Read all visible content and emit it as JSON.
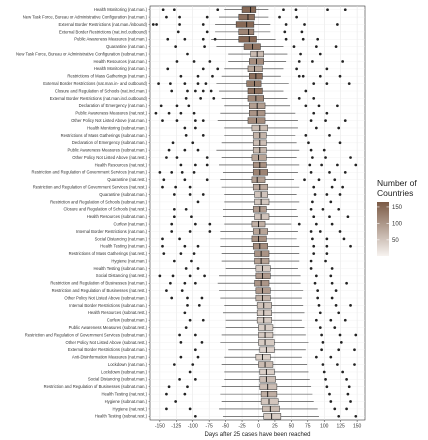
{
  "chart_data": {
    "type": "boxplot",
    "xlabel": "Days after 25 cases have been reached",
    "xlim": [
      -165,
      162
    ],
    "xticks": [
      -150,
      -125,
      -100,
      -75,
      -50,
      -25,
      0,
      25,
      50,
      75,
      100,
      125,
      150
    ],
    "grid": true,
    "legend": {
      "title_line1": "Number of",
      "title_line2": "Countries",
      "placement": "right",
      "range": [
        1,
        165
      ],
      "ticks": [
        50,
        100,
        150
      ],
      "color_low": "#f7f3f0",
      "color_high": "#7b5a45"
    },
    "series": [
      {
        "label": "Health Monitoring (nat.man.)",
        "q1": -25,
        "median": -12,
        "q3": -4,
        "wlo": -52,
        "whi": 15,
        "n": 150,
        "outliers": [
          -145,
          -128,
          -62,
          38,
          57,
          105,
          132
        ]
      },
      {
        "label": "New Task Force, Bureau or Administrative Configuration (nat.man.)",
        "q1": -30,
        "median": -16,
        "q3": -6,
        "wlo": -60,
        "whi": 15,
        "n": 142,
        "outliers": [
          -140,
          -120,
          -78,
          32,
          58
        ]
      },
      {
        "label": "External Border Restrictions (nat.man./inbound)",
        "q1": -34,
        "median": -18,
        "q3": -7,
        "wlo": -66,
        "whi": 18,
        "n": 150,
        "outliers": [
          -160,
          -155,
          -120,
          -84,
          42,
          70,
          120
        ]
      },
      {
        "label": "External Border Restrictions (nat.incl.outbound)",
        "q1": -30,
        "median": -15,
        "q3": -7,
        "wlo": -66,
        "whi": 18,
        "n": 120,
        "outliers": [
          -122,
          -78,
          40,
          66
        ]
      },
      {
        "label": "Public Awareness Measures (nat.man.)",
        "q1": -30,
        "median": -14,
        "q3": -3,
        "wlo": -72,
        "whi": 26,
        "n": 152,
        "outliers": [
          -138,
          -112,
          -84,
          -66,
          42,
          68,
          90
        ]
      },
      {
        "label": "Quarantine (nat.man.)",
        "q1": -22,
        "median": -9,
        "q3": 3,
        "wlo": -64,
        "whi": 38,
        "n": 136,
        "outliers": [
          -126,
          -82,
          54,
          88,
          118
        ]
      },
      {
        "label": "New Task Force, Bureau or Administrative Configuration (subnat.man.)",
        "q1": -12,
        "median": -2,
        "q3": 8,
        "wlo": -46,
        "whi": 44,
        "n": 62,
        "outliers": [
          -108,
          64,
          94
        ]
      },
      {
        "label": "Health Resources (nat.man.)",
        "q1": -14,
        "median": -3,
        "q3": 8,
        "wlo": -46,
        "whi": 42,
        "n": 110,
        "outliers": [
          -124,
          -98,
          -74,
          62,
          82,
          128
        ]
      },
      {
        "label": "Health Monitoring (nat.man.)",
        "q1": -16,
        "median": -6,
        "q3": 6,
        "wlo": -52,
        "whi": 38,
        "n": 84,
        "outliers": [
          -138,
          -84,
          -62,
          58,
          104
        ]
      },
      {
        "label": "Restrictions of Mass Gatherings (nat.man.)",
        "q1": -14,
        "median": -4,
        "q3": 6,
        "wlo": -56,
        "whi": 34,
        "n": 142,
        "outliers": [
          -118,
          -92,
          -70,
          62,
          68,
          94,
          124
        ]
      },
      {
        "label": "External Border Restrictions (nat.man.in- and outbound)",
        "q1": -18,
        "median": -6,
        "q3": 4,
        "wlo": -64,
        "whi": 46,
        "n": 130,
        "outliers": [
          -152,
          -134,
          -112,
          -92,
          -80,
          84,
          104,
          138
        ]
      },
      {
        "label": "Closure and Regulation of Schools (nat.incl.man.)",
        "q1": -16,
        "median": -6,
        "q3": 6,
        "wlo": -60,
        "whi": 38,
        "n": 140,
        "outliers": [
          -132,
          -108,
          -96,
          -84,
          -72,
          72
        ]
      },
      {
        "label": "External Border Restrictions (nat.man.incl.outbound)",
        "q1": -16,
        "median": -4,
        "q3": 8,
        "wlo": -56,
        "whi": 44,
        "n": 118,
        "outliers": [
          -110,
          -88,
          -68,
          62,
          84
        ]
      },
      {
        "label": "Declaration of Emergency (nat.man.)",
        "q1": -14,
        "median": -2,
        "q3": 10,
        "wlo": -52,
        "whi": 48,
        "n": 92,
        "outliers": [
          -148,
          -124,
          -106,
          72,
          92,
          120
        ]
      },
      {
        "label": "Public Awareness Measures (nat.rest.)",
        "q1": -14,
        "median": -2,
        "q3": 10,
        "wlo": -58,
        "whi": 56,
        "n": 104,
        "outliers": [
          -156,
          -136,
          -118,
          -98,
          84,
          104
        ]
      },
      {
        "label": "Other Policy Not Listed Above (nat.man.)",
        "q1": -16,
        "median": -3,
        "q3": 10,
        "wlo": -62,
        "whi": 60,
        "n": 112,
        "outliers": [
          -146,
          -124,
          -96,
          -84,
          80,
          102,
          132
        ]
      },
      {
        "label": "Health Monitoring (subnat.man.)",
        "q1": -10,
        "median": 2,
        "q3": 14,
        "wlo": -52,
        "whi": 60,
        "n": 60,
        "outliers": [
          -112,
          -96,
          88,
          122
        ]
      },
      {
        "label": "Restrictions of Mass Gatherings (subnat.man.)",
        "q1": -8,
        "median": 2,
        "q3": 12,
        "wlo": -52,
        "whi": 56,
        "n": 70,
        "outliers": [
          -110,
          -84,
          72,
          108
        ]
      },
      {
        "label": "Declaration of Emergency (subnat.man.)",
        "q1": -8,
        "median": 2,
        "q3": 12,
        "wlo": -56,
        "whi": 58,
        "n": 58,
        "outliers": [
          -130,
          -100,
          76,
          124
        ]
      },
      {
        "label": "Public Awareness Measures (subnat.man.)",
        "q1": -8,
        "median": 2,
        "q3": 12,
        "wlo": -64,
        "whi": 62,
        "n": 64,
        "outliers": [
          -136,
          -112,
          -92,
          80,
          100
        ]
      },
      {
        "label": "Other Policy Not Listed Above (nat.rest.)",
        "q1": -10,
        "median": 0,
        "q3": 12,
        "wlo": -56,
        "whi": 58,
        "n": 86,
        "outliers": [
          -140,
          -124,
          -78,
          82,
          102,
          140
        ]
      },
      {
        "label": "Health Resources (nat.rest.)",
        "q1": -8,
        "median": 2,
        "q3": 12,
        "wlo": -60,
        "whi": 62,
        "n": 108,
        "outliers": [
          -118,
          -96,
          -78,
          78,
          96,
          120,
          148
        ]
      },
      {
        "label": "Restriction and Regulation of Government Services (nat.man.)",
        "q1": -8,
        "median": 2,
        "q3": 14,
        "wlo": -54,
        "whi": 60,
        "n": 120,
        "outliers": [
          -150,
          -132,
          -116,
          -98,
          80,
          108,
          132
        ]
      },
      {
        "label": "Quarantine (nat.rest.)",
        "q1": -10,
        "median": -2,
        "q3": 10,
        "wlo": -58,
        "whi": 54,
        "n": 92,
        "outliers": [
          -144,
          -112,
          -78,
          70,
          92,
          116
        ]
      },
      {
        "label": "Restriction and Regulation of Government Services (nat.rest.)",
        "q1": -8,
        "median": 2,
        "q3": 14,
        "wlo": -56,
        "whi": 62,
        "n": 82,
        "outliers": [
          -146,
          -126,
          -104,
          84,
          112,
          128
        ]
      },
      {
        "label": "Quarantine (subnat.man.)",
        "q1": -6,
        "median": 4,
        "q3": 14,
        "wlo": -52,
        "whi": 58,
        "n": 52,
        "outliers": [
          -128,
          -104,
          -84,
          86,
          104,
          124
        ]
      },
      {
        "label": "Restriction and Regulation of Schools (subnat.man.)",
        "q1": -6,
        "median": 4,
        "q3": 16,
        "wlo": -52,
        "whi": 62,
        "n": 48,
        "outliers": [
          -92,
          82,
          110
        ]
      },
      {
        "label": "Closure and Regulation of Schools (nat.rest.)",
        "q1": -8,
        "median": 2,
        "q3": 12,
        "wlo": -54,
        "whi": 58,
        "n": 96,
        "outliers": [
          -128,
          -110,
          80,
          98,
          122
        ]
      },
      {
        "label": "Health Resources (subnat.man.)",
        "q1": -6,
        "median": 4,
        "q3": 16,
        "wlo": -54,
        "whi": 60,
        "n": 52,
        "outliers": [
          -128,
          -102,
          84,
          108,
          136
        ]
      },
      {
        "label": "Curfew (nat.man.)",
        "q1": -10,
        "median": 0,
        "q3": 10,
        "wlo": -52,
        "whi": 50,
        "n": 74,
        "outliers": [
          -132,
          -96,
          -74,
          62,
          88,
          112
        ]
      },
      {
        "label": "Internal Border Restrictions (nat.man.)",
        "q1": -8,
        "median": 2,
        "q3": 14,
        "wlo": -58,
        "whi": 60,
        "n": 86,
        "outliers": [
          -132,
          -104,
          -74,
          80,
          94,
          124
        ]
      },
      {
        "label": "Social Distancing (nat.man.)",
        "q1": -10,
        "median": 0,
        "q3": 12,
        "wlo": -58,
        "whi": 58,
        "n": 108,
        "outliers": [
          -146,
          -120,
          82,
          104,
          130
        ]
      },
      {
        "label": "Health Testing (nat.man.)",
        "q1": -8,
        "median": 2,
        "q3": 14,
        "wlo": -58,
        "whi": 62,
        "n": 110,
        "outliers": [
          -146,
          -112,
          -92,
          84,
          104,
          140
        ]
      },
      {
        "label": "Restrictions of Mass Gatherings (nat.rest.)",
        "q1": -6,
        "median": 4,
        "q3": 16,
        "wlo": -56,
        "whi": 62,
        "n": 104,
        "outliers": [
          -144,
          -118,
          -98,
          84,
          104
        ]
      },
      {
        "label": "Hygiene (nat.man.)",
        "q1": -6,
        "median": 4,
        "q3": 16,
        "wlo": -56,
        "whi": 62,
        "n": 90,
        "outliers": [
          -128,
          -102,
          80,
          102
        ]
      },
      {
        "label": "Health Testing (subnat.man.)",
        "q1": -4,
        "median": 6,
        "q3": 18,
        "wlo": -50,
        "whi": 60,
        "n": 46,
        "outliers": [
          -110,
          -92,
          80,
          112
        ]
      },
      {
        "label": "Social Distancing (nat.rest.)",
        "q1": -4,
        "median": 6,
        "q3": 18,
        "wlo": -60,
        "whi": 64,
        "n": 96,
        "outliers": [
          -150,
          -130,
          -104,
          -82,
          88,
          110
        ]
      },
      {
        "label": "Restriction and Regulation of Businesses (nat.man.)",
        "q1": -6,
        "median": 4,
        "q3": 16,
        "wlo": -62,
        "whi": 64,
        "n": 102,
        "outliers": [
          -134,
          -112,
          -96,
          86,
          112,
          134
        ]
      },
      {
        "label": "Restriction and Regulation of Businesses (nat.rest.)",
        "q1": -4,
        "median": 6,
        "q3": 18,
        "wlo": -60,
        "whi": 68,
        "n": 96,
        "outliers": [
          -140,
          -116,
          90,
          118
        ]
      },
      {
        "label": "Other Policy Not Listed Above (subnat.man.)",
        "q1": -4,
        "median": 6,
        "q3": 18,
        "wlo": -58,
        "whi": 66,
        "n": 70,
        "outliers": [
          -132,
          -108,
          -86,
          90,
          112
        ]
      },
      {
        "label": "Internal Border Restrictions (subnat.man.)",
        "q1": -2,
        "median": 8,
        "q3": 20,
        "wlo": -52,
        "whi": 68,
        "n": 54,
        "outliers": [
          -108,
          -90,
          92,
          118,
          140
        ]
      },
      {
        "label": "Health Resources (subnat.rest.)",
        "q1": -2,
        "median": 8,
        "q3": 20,
        "wlo": -54,
        "whi": 70,
        "n": 46,
        "outliers": [
          -112,
          94,
          122
        ]
      },
      {
        "label": "Curfew (subnat.man.)",
        "q1": -2,
        "median": 8,
        "q3": 20,
        "wlo": -50,
        "whi": 66,
        "n": 44,
        "outliers": [
          -104,
          -84,
          88,
          110,
          132
        ]
      },
      {
        "label": "Public Awareness Measures (subnat.rest.)",
        "q1": 0,
        "median": 10,
        "q3": 22,
        "wlo": -50,
        "whi": 70,
        "n": 42,
        "outliers": [
          -110,
          94,
          116
        ]
      },
      {
        "label": "Restriction and Regulation of Government Services (subnat.man.)",
        "q1": 0,
        "median": 10,
        "q3": 22,
        "wlo": -56,
        "whi": 72,
        "n": 48,
        "outliers": [
          -120,
          -96,
          96,
          124,
          148
        ]
      },
      {
        "label": "Other Policy Not Listed Above (subnat.rest.)",
        "q1": 0,
        "median": 10,
        "q3": 24,
        "wlo": -58,
        "whi": 76,
        "n": 44,
        "outliers": [
          -118,
          -86,
          98,
          126
        ]
      },
      {
        "label": "External Border Restrictions (subnat.man.)",
        "q1": 2,
        "median": 12,
        "q3": 24,
        "wlo": -46,
        "whi": 72,
        "n": 36,
        "outliers": [
          -96,
          96,
          122,
          146
        ]
      },
      {
        "label": "Anti-Disinformation Measures (nat.man.)",
        "q1": -4,
        "median": 6,
        "q3": 18,
        "wlo": -52,
        "whi": 66,
        "n": 40,
        "outliers": [
          -118,
          -92,
          88,
          110
        ]
      },
      {
        "label": "Lockdown (nat.man.)",
        "q1": 0,
        "median": 10,
        "q3": 22,
        "wlo": -56,
        "whi": 74,
        "n": 62,
        "outliers": [
          -128,
          -100,
          98,
          120,
          146
        ]
      },
      {
        "label": "Lockdown (subnat.man.)",
        "q1": 2,
        "median": 12,
        "q3": 24,
        "wlo": -52,
        "whi": 76,
        "n": 40,
        "outliers": [
          -104,
          100,
          128
        ]
      },
      {
        "label": "Social Distancing (subnat.man.)",
        "q1": 2,
        "median": 12,
        "q3": 26,
        "wlo": -52,
        "whi": 78,
        "n": 58,
        "outliers": [
          -120,
          -96,
          102,
          134
        ]
      },
      {
        "label": "Restriction and Regulation of Businesses (subnat.man.)",
        "q1": 2,
        "median": 14,
        "q3": 28,
        "wlo": -56,
        "whi": 80,
        "n": 58,
        "outliers": [
          -136,
          -108,
          104,
          138
        ]
      },
      {
        "label": "Health Testing (nat.rest.)",
        "q1": 4,
        "median": 14,
        "q3": 28,
        "wlo": -58,
        "whi": 82,
        "n": 76,
        "outliers": [
          -140,
          -112,
          108,
          136
        ]
      },
      {
        "label": "Hygiene (subnat.man.)",
        "q1": 4,
        "median": 16,
        "q3": 30,
        "wlo": -56,
        "whi": 84,
        "n": 50,
        "outliers": [
          -126,
          110,
          140
        ]
      },
      {
        "label": "Hygiene (nat.rest.)",
        "q1": 6,
        "median": 18,
        "q3": 32,
        "wlo": -60,
        "whi": 90,
        "n": 62,
        "outliers": [
          -140,
          -104,
          116,
          134
        ]
      },
      {
        "label": "Health Testing (subnat.rest.)",
        "q1": 8,
        "median": 20,
        "q3": 34,
        "wlo": -54,
        "whi": 92,
        "n": 44,
        "outliers": [
          -96,
          122,
          148
        ]
      }
    ]
  }
}
